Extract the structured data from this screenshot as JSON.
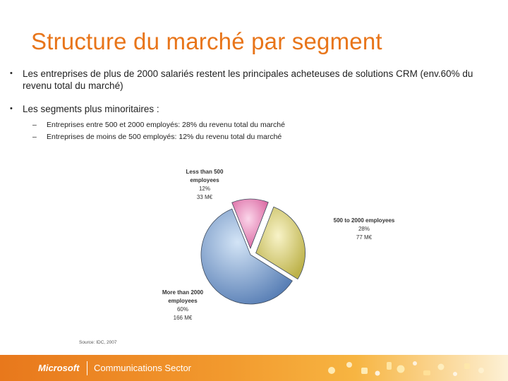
{
  "title": "Structure du marché par segment",
  "bullets": [
    {
      "text": "Les entreprises de plus de 2000 salariés restent les principales acheteuses de solutions CRM (env.60% du revenu total du marché)"
    },
    {
      "text": "Les segments plus minoritaires :"
    }
  ],
  "sub_bullets": [
    {
      "text": "Entreprises entre 500 et 2000 employés:  28% du revenu total du marché"
    },
    {
      "text": "Entreprises de moins de 500 employés:  12% du revenu total du marché"
    }
  ],
  "chart_data": {
    "type": "pie",
    "slices": [
      {
        "name": "Less than 500 employees",
        "line1": "Less than 500",
        "line2": "employees",
        "percent": 12,
        "percent_label": "12%",
        "value_label": "33 M€",
        "color": "#e98cc0"
      },
      {
        "name": "500 to 2000 employees",
        "line1": "500 to 2000 employees",
        "line2": "",
        "percent": 28,
        "percent_label": "28%",
        "value_label": "77 M€",
        "color": "#dcd47a"
      },
      {
        "name": "More than 2000 employees",
        "line1": "More than 2000",
        "line2": "employees",
        "percent": 60,
        "percent_label": "60%",
        "value_label": "166 M€",
        "color": "#7ea3d2"
      }
    ],
    "source": "Source: IDC, 2007"
  },
  "footer": {
    "brand": "Microsoft",
    "sector": "Communications Sector"
  }
}
